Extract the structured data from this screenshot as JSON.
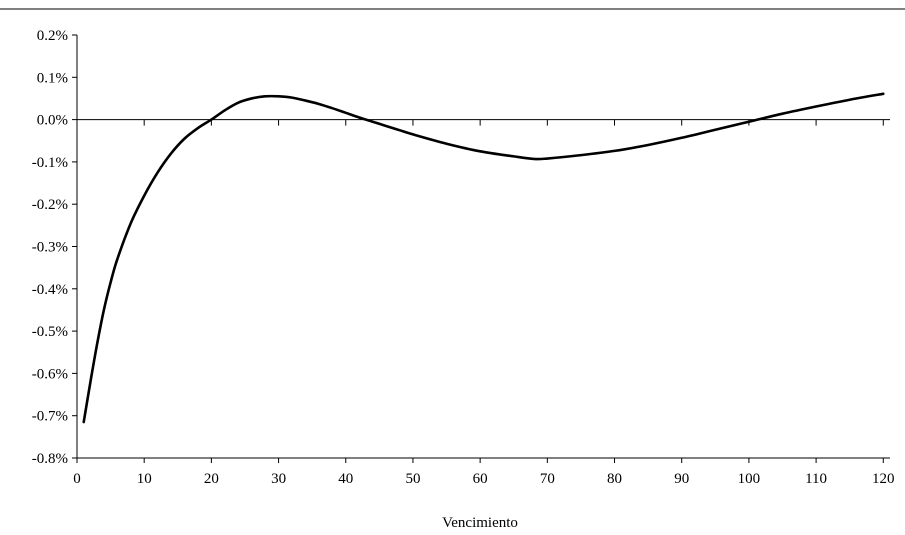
{
  "chart_data": {
    "type": "line",
    "title": "",
    "xlabel": "Vencimiento",
    "ylabel": "",
    "xlim": [
      0,
      121
    ],
    "ylim": [
      -0.8,
      0.2
    ],
    "x_ticks": [
      0,
      10,
      20,
      30,
      40,
      50,
      60,
      70,
      80,
      90,
      100,
      110,
      120
    ],
    "x_tick_labels": [
      "0",
      "10",
      "20",
      "30",
      "40",
      "50",
      "60",
      "70",
      "80",
      "90",
      "100",
      "110",
      "120"
    ],
    "y_ticks": [
      0.2,
      0.1,
      0.0,
      -0.1,
      -0.2,
      -0.3,
      -0.4,
      -0.5,
      -0.6,
      -0.7,
      -0.8
    ],
    "y_tick_labels": [
      "0.2%",
      "0.1%",
      "0.0%",
      "-0.1%",
      "-0.2%",
      "-0.3%",
      "-0.4%",
      "-0.5%",
      "-0.6%",
      "-0.7%",
      "-0.8%"
    ],
    "y_unit": "%",
    "grid": false,
    "legend": "none",
    "line_color": "#000000",
    "series": [
      {
        "x": [
          1,
          2,
          3,
          4,
          5,
          6,
          8,
          10,
          12,
          14,
          16,
          18,
          20,
          22,
          24,
          26,
          28,
          30,
          32,
          34,
          36,
          38,
          40,
          42,
          44,
          46,
          48,
          50,
          55,
          60,
          65,
          68,
          70,
          75,
          80,
          85,
          90,
          95,
          100,
          105,
          110,
          115,
          120
        ],
        "values": [
          -0.715,
          -0.62,
          -0.53,
          -0.45,
          -0.385,
          -0.33,
          -0.245,
          -0.18,
          -0.125,
          -0.08,
          -0.045,
          -0.02,
          0.0,
          0.022,
          0.04,
          0.05,
          0.055,
          0.055,
          0.052,
          0.045,
          0.037,
          0.027,
          0.016,
          0.005,
          -0.005,
          -0.015,
          -0.025,
          -0.035,
          -0.057,
          -0.075,
          -0.087,
          -0.093,
          -0.092,
          -0.084,
          -0.074,
          -0.06,
          -0.043,
          -0.024,
          -0.005,
          0.014,
          0.031,
          0.047,
          0.061
        ]
      }
    ]
  }
}
